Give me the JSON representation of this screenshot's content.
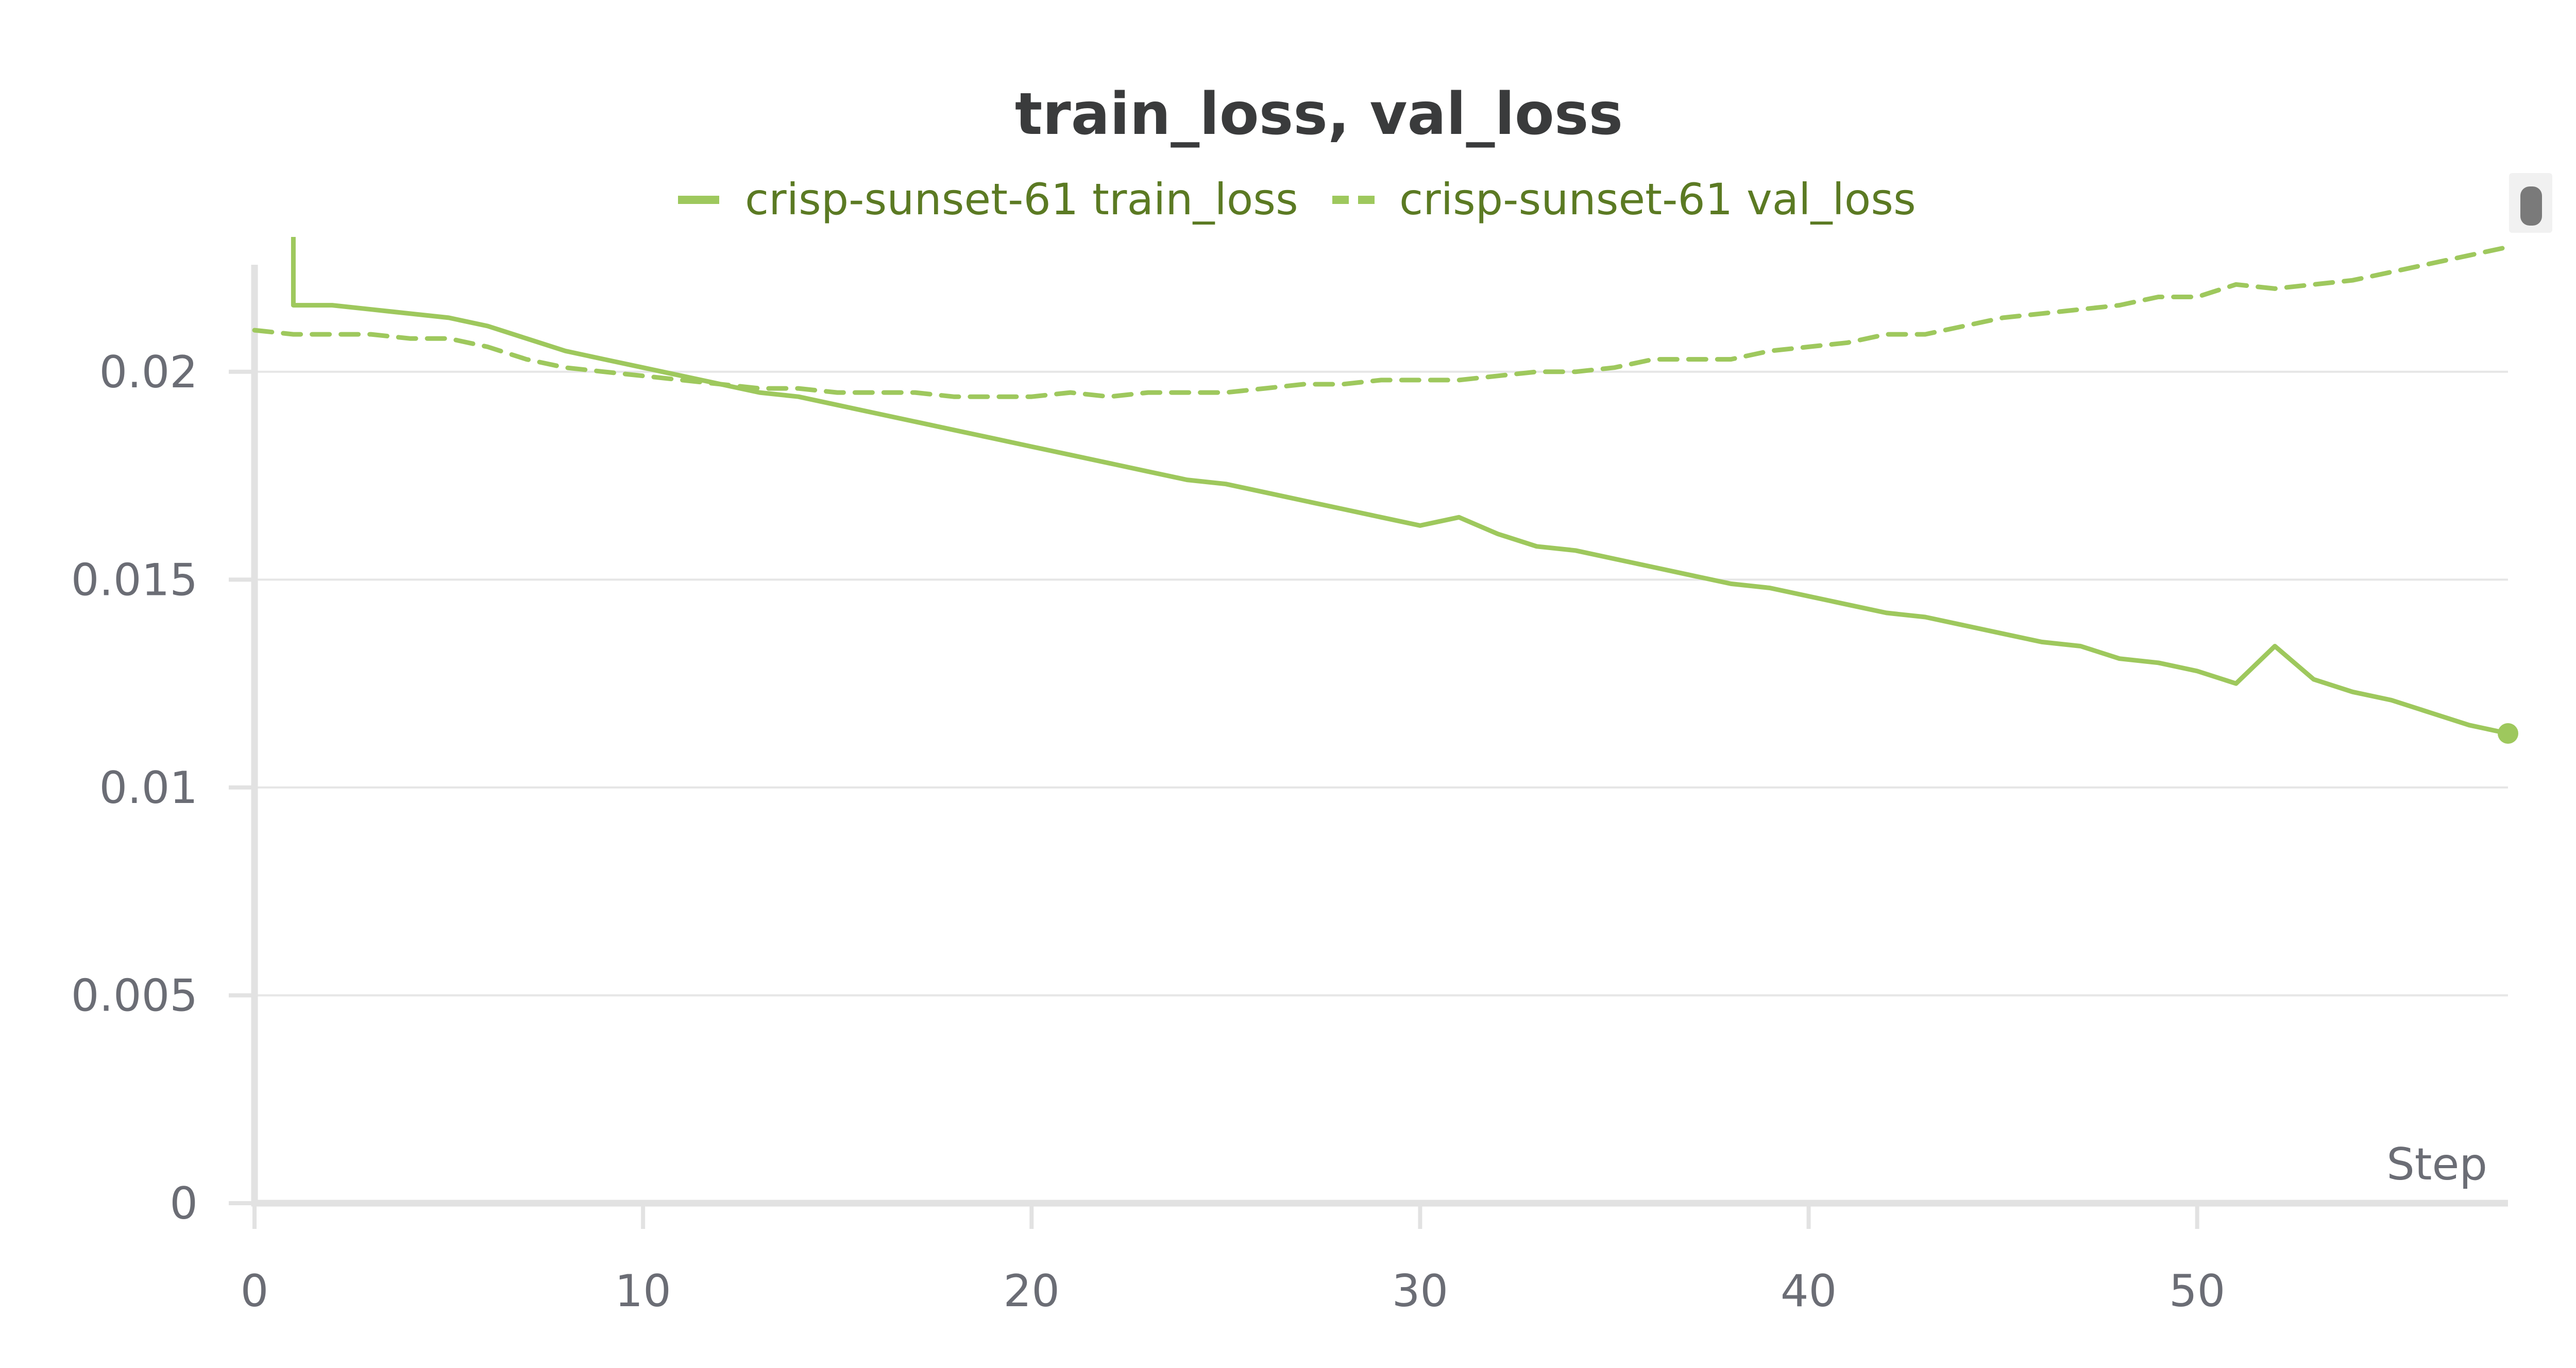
{
  "chart_data": {
    "type": "line",
    "title": "train_loss, val_loss",
    "xlabel": "Step",
    "ylabel": "",
    "xlim": [
      0,
      58
    ],
    "ylim": [
      0,
      0.0225
    ],
    "xticks": [
      0,
      10,
      20,
      30,
      40,
      50
    ],
    "xtick_labels": [
      "0",
      "10",
      "20",
      "30",
      "40",
      "50"
    ],
    "yticks": [
      0,
      0.005,
      0.01,
      0.015,
      0.02
    ],
    "ytick_labels": [
      "0",
      "0.005",
      "0.01",
      "0.015",
      "0.02"
    ],
    "grid": true,
    "legend": "top-center",
    "series": [
      {
        "name": "crisp-sunset-61 train_loss",
        "style": "solid",
        "color": "#9ec85d",
        "x": [
          1,
          2,
          3,
          4,
          5,
          6,
          7,
          8,
          9,
          10,
          11,
          12,
          13,
          14,
          15,
          16,
          17,
          18,
          19,
          20,
          21,
          22,
          23,
          24,
          25,
          26,
          27,
          28,
          29,
          30,
          31,
          32,
          33,
          34,
          35,
          36,
          37,
          38,
          39,
          40,
          41,
          42,
          43,
          44,
          45,
          46,
          47,
          48,
          49,
          50,
          51,
          52,
          53,
          54,
          55,
          56,
          57,
          58
        ],
        "y": [
          0.0216,
          0.0216,
          0.0215,
          0.0214,
          0.0213,
          0.0211,
          0.0208,
          0.0205,
          0.0203,
          0.0201,
          0.0199,
          0.0197,
          0.0195,
          0.0194,
          0.0192,
          0.019,
          0.0188,
          0.0186,
          0.0184,
          0.0182,
          0.018,
          0.0178,
          0.0176,
          0.0174,
          0.0173,
          0.0171,
          0.0169,
          0.0167,
          0.0165,
          0.0163,
          0.0165,
          0.0161,
          0.0158,
          0.0157,
          0.0155,
          0.0153,
          0.0151,
          0.0149,
          0.0148,
          0.0146,
          0.0144,
          0.0142,
          0.0141,
          0.0139,
          0.0137,
          0.0135,
          0.0134,
          0.0131,
          0.013,
          0.0128,
          0.0125,
          0.0134,
          0.0126,
          0.0123,
          0.0121,
          0.0118,
          0.0115,
          0.0113
        ]
      },
      {
        "name": "crisp-sunset-61 val_loss",
        "style": "dashed",
        "color": "#9ec85d",
        "x": [
          0,
          1,
          2,
          3,
          4,
          5,
          6,
          7,
          8,
          9,
          10,
          11,
          12,
          13,
          14,
          15,
          16,
          17,
          18,
          19,
          20,
          21,
          22,
          23,
          24,
          25,
          26,
          27,
          28,
          29,
          30,
          31,
          32,
          33,
          34,
          35,
          36,
          37,
          38,
          39,
          40,
          41,
          42,
          43,
          44,
          45,
          46,
          47,
          48,
          49,
          50,
          51,
          52,
          53,
          54,
          55,
          56,
          57,
          58
        ],
        "y": [
          0.021,
          0.0209,
          0.0209,
          0.0209,
          0.0208,
          0.0208,
          0.0206,
          0.0203,
          0.0201,
          0.02,
          0.0199,
          0.0198,
          0.0197,
          0.0196,
          0.0196,
          0.0195,
          0.0195,
          0.0195,
          0.0194,
          0.0194,
          0.0194,
          0.0195,
          0.0194,
          0.0195,
          0.0195,
          0.0195,
          0.0196,
          0.0197,
          0.0197,
          0.0198,
          0.0198,
          0.0198,
          0.0199,
          0.02,
          0.02,
          0.0201,
          0.0203,
          0.0203,
          0.0203,
          0.0205,
          0.0206,
          0.0207,
          0.0209,
          0.0209,
          0.0211,
          0.0213,
          0.0214,
          0.0215,
          0.0216,
          0.0218,
          0.0218,
          0.0221,
          0.022,
          0.0221,
          0.0222,
          0.0224,
          0.0226,
          0.0228,
          0.023
        ]
      }
    ]
  }
}
